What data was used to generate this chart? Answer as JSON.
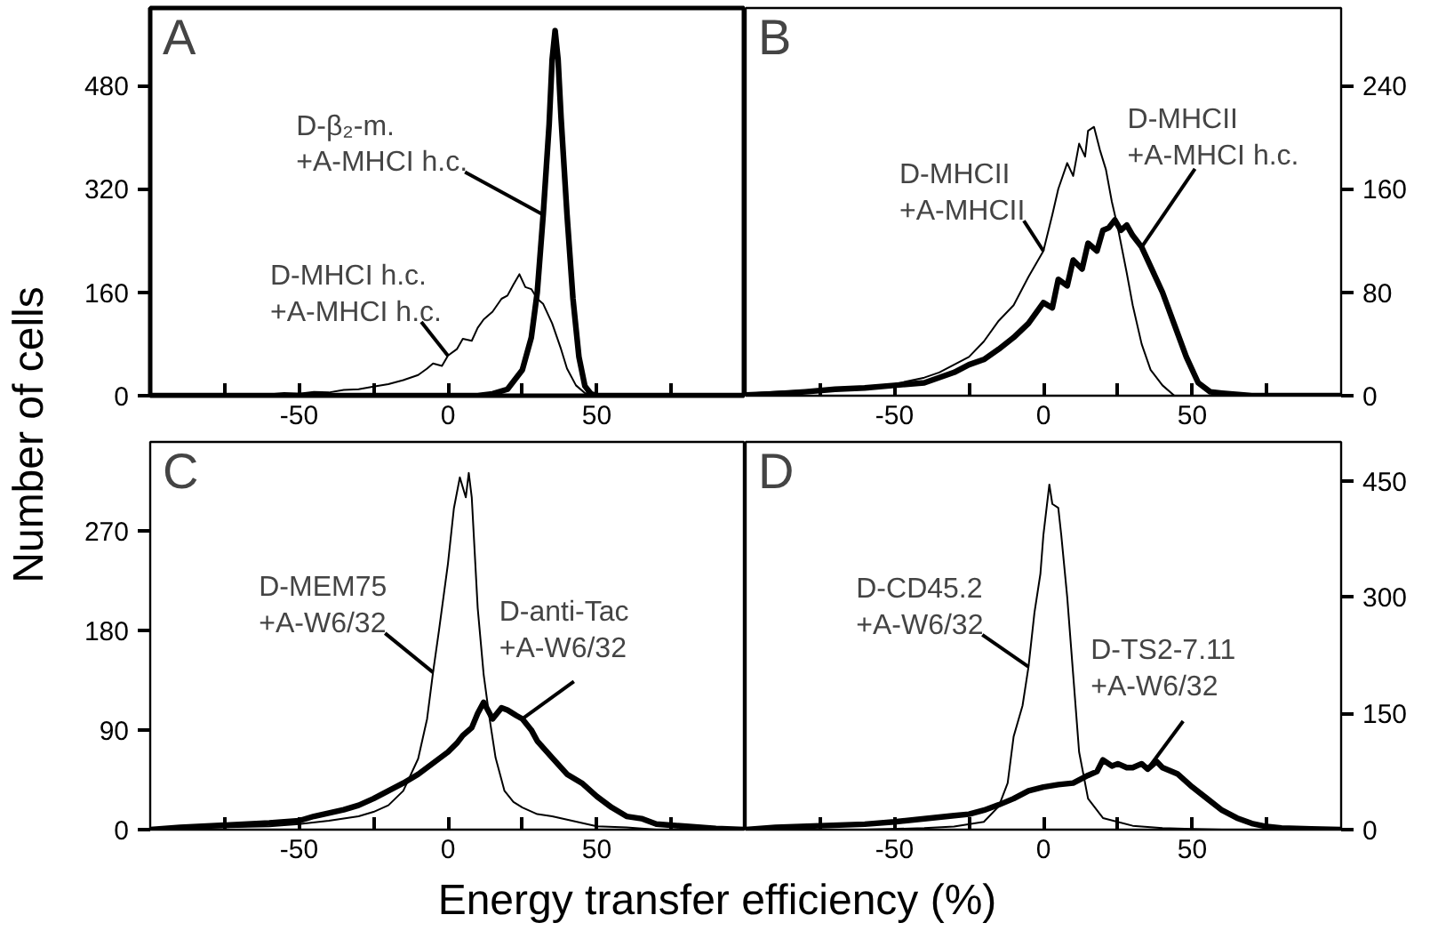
{
  "chart_data": [
    {
      "type": "line",
      "ylabel": "Number of cells",
      "xlim": [
        -100,
        100
      ],
      "ylim": [
        0,
        600
      ],
      "xticks": [
        {
          "value": -75,
          "label": null
        },
        -50,
        {
          "value": -25,
          "label": null
        },
        0,
        {
          "value": 25,
          "label": null
        },
        50,
        {
          "value": 75,
          "label": null
        }
      ],
      "yticks": [
        0,
        160,
        320,
        480
      ],
      "annotations": [
        "A",
        {
          "text": "D-β₂-m.\n+A-MHCI h.c.",
          "x": 32,
          "y": 280
        },
        {
          "text": "D-MHCI h.c.\n+A-MHCI h.c.",
          "x": 0,
          "y": 62
        }
      ],
      "series": [
        {
          "color": "#000000",
          "x": [
            -100,
            -70,
            -60,
            -55,
            -50,
            -45,
            -40,
            -35,
            -30,
            -25,
            -20,
            -15,
            -10,
            -7,
            -5,
            -2,
            0,
            3,
            5,
            8,
            10,
            12,
            15,
            18,
            20,
            22,
            24,
            26,
            28,
            30,
            32,
            35,
            38,
            40,
            43,
            46,
            50,
            60,
            100
          ],
          "values": [
            0,
            0,
            2,
            4,
            3,
            6,
            5,
            9,
            10,
            14,
            18,
            24,
            32,
            42,
            50,
            46,
            62,
            72,
            88,
            85,
            105,
            118,
            130,
            150,
            155,
            172,
            188,
            168,
            165,
            150,
            142,
            112,
            72,
            42,
            16,
            4,
            0,
            0,
            0
          ]
        },
        {
          "color": "#000000",
          "x": [
            -100,
            0,
            10,
            15,
            20,
            25,
            28,
            30,
            32,
            34,
            35,
            36,
            37,
            38,
            40,
            42,
            44,
            46,
            48,
            50,
            100
          ],
          "values": [
            0,
            0,
            0,
            3,
            10,
            40,
            90,
            160,
            280,
            420,
            520,
            565,
            520,
            430,
            280,
            150,
            60,
            15,
            3,
            0,
            0
          ]
        }
      ]
    },
    {
      "type": "line",
      "xlim": [
        -100,
        100
      ],
      "ylim": [
        0,
        300
      ],
      "xticks": [
        {
          "value": -75,
          "label": null
        },
        -50,
        {
          "value": -25,
          "label": null
        },
        0,
        {
          "value": 25,
          "label": null
        },
        50,
        {
          "value": 75,
          "label": null
        }
      ],
      "yticks": [
        0,
        80,
        160,
        240
      ],
      "annotations": [
        "B",
        {
          "text": "D-MHCII\n+A-MHCII",
          "x": 0,
          "y": 112
        },
        {
          "text": "D-MHCII\n+A-MHCI h.c.",
          "x": 33,
          "y": 115
        }
      ],
      "series": [
        {
          "color": "#000000",
          "x": [
            -100,
            -80,
            -70,
            -60,
            -50,
            -40,
            -35,
            -30,
            -25,
            -20,
            -15,
            -10,
            -5,
            0,
            3,
            5,
            8,
            10,
            12,
            14,
            15,
            17,
            19,
            21,
            23,
            25,
            28,
            30,
            33,
            36,
            40,
            44,
            50,
            100
          ],
          "values": [
            2,
            4,
            5,
            7,
            9,
            14,
            18,
            24,
            30,
            42,
            58,
            70,
            92,
            112,
            140,
            160,
            180,
            170,
            195,
            185,
            205,
            208,
            190,
            175,
            150,
            130,
            95,
            70,
            40,
            20,
            8,
            0,
            0,
            0
          ]
        },
        {
          "color": "#000000",
          "x": [
            -100,
            -80,
            -70,
            -60,
            -50,
            -40,
            -30,
            -25,
            -20,
            -15,
            -10,
            -5,
            0,
            3,
            5,
            8,
            10,
            13,
            15,
            18,
            20,
            22,
            24,
            26,
            28,
            30,
            33,
            36,
            40,
            44,
            48,
            52,
            56,
            60,
            70,
            100
          ],
          "values": [
            0,
            3,
            5,
            6,
            8,
            10,
            18,
            24,
            28,
            36,
            45,
            56,
            72,
            68,
            90,
            85,
            105,
            98,
            118,
            112,
            128,
            130,
            136,
            128,
            132,
            124,
            115,
            100,
            80,
            55,
            30,
            10,
            3,
            2,
            0,
            0
          ]
        }
      ]
    },
    {
      "type": "line",
      "xlabel": "Energy transfer efficiency (%)",
      "xlim": [
        -100,
        100
      ],
      "ylim": [
        0,
        350
      ],
      "xticks": [
        {
          "value": -75,
          "label": null
        },
        -50,
        {
          "value": -25,
          "label": null
        },
        0,
        {
          "value": 25,
          "label": null
        },
        50,
        {
          "value": 75,
          "label": null
        }
      ],
      "yticks": [
        0,
        90,
        180,
        270
      ],
      "annotations": [
        "C",
        {
          "text": "D-MEM75\n+A-W6/32",
          "x": -5,
          "y": 142
        },
        {
          "text": "D-anti-Tac\n+A-W6/32",
          "x": 25,
          "y": 100
        }
      ],
      "series": [
        {
          "color": "#000000",
          "x": [
            -100,
            -80,
            -60,
            -50,
            -40,
            -30,
            -25,
            -20,
            -15,
            -10,
            -7,
            -5,
            -3,
            0,
            2,
            4,
            6,
            7,
            8,
            9,
            10,
            12,
            14,
            16,
            19,
            22,
            25,
            30,
            35,
            40,
            45,
            50,
            60,
            70,
            100
          ],
          "values": [
            0,
            2,
            3,
            5,
            8,
            12,
            16,
            22,
            35,
            64,
            100,
            142,
            180,
            240,
            290,
            318,
            300,
            322,
            300,
            250,
            200,
            140,
            100,
            65,
            35,
            25,
            20,
            14,
            12,
            9,
            6,
            3,
            2,
            0,
            0
          ]
        },
        {
          "color": "#000000",
          "x": [
            -100,
            -90,
            -75,
            -60,
            -50,
            -45,
            -40,
            -35,
            -30,
            -25,
            -20,
            -15,
            -10,
            -5,
            0,
            3,
            5,
            8,
            10,
            12,
            15,
            18,
            20,
            23,
            25,
            28,
            30,
            35,
            40,
            45,
            50,
            55,
            60,
            65,
            70,
            80,
            90,
            100
          ],
          "values": [
            0,
            2,
            4,
            6,
            8,
            12,
            15,
            18,
            22,
            28,
            35,
            42,
            50,
            60,
            70,
            78,
            85,
            92,
            105,
            115,
            100,
            110,
            108,
            103,
            100,
            90,
            80,
            65,
            50,
            42,
            30,
            20,
            12,
            10,
            5,
            3,
            1,
            0
          ]
        }
      ]
    },
    {
      "type": "line",
      "xlim": [
        -100,
        100
      ],
      "ylim": [
        0,
        500
      ],
      "xticks": [
        {
          "value": -75,
          "label": null
        },
        -50,
        {
          "value": -25,
          "label": null
        },
        0,
        {
          "value": 25,
          "label": null
        },
        50,
        {
          "value": 75,
          "label": null
        }
      ],
      "yticks": [
        0,
        150,
        300,
        450
      ],
      "annotations": [
        "D",
        {
          "text": "D-CD45.2\n+A-W6/32",
          "x": -5,
          "y": 210
        },
        {
          "text": "D-TS2-7.11\n+A-W6/32",
          "x": 35,
          "y": 78
        }
      ],
      "series": [
        {
          "color": "#000000",
          "x": [
            -100,
            -60,
            -40,
            -30,
            -20,
            -15,
            -12,
            -10,
            -7,
            -5,
            -3,
            -1,
            0,
            2,
            3,
            5,
            6,
            8,
            10,
            12,
            15,
            20,
            30,
            40,
            50,
            60,
            100
          ],
          "values": [
            0,
            0,
            2,
            4,
            10,
            30,
            60,
            120,
            160,
            210,
            280,
            330,
            380,
            445,
            420,
            415,
            380,
            300,
            200,
            100,
            40,
            15,
            5,
            2,
            1,
            0,
            0
          ]
        },
        {
          "color": "#000000",
          "x": [
            -100,
            -90,
            -75,
            -60,
            -50,
            -40,
            -30,
            -25,
            -20,
            -15,
            -10,
            -5,
            0,
            5,
            10,
            15,
            18,
            20,
            23,
            25,
            28,
            30,
            33,
            35,
            38,
            40,
            45,
            50,
            55,
            60,
            65,
            70,
            75,
            80,
            90,
            100
          ],
          "values": [
            0,
            3,
            5,
            7,
            10,
            14,
            18,
            20,
            25,
            32,
            40,
            50,
            55,
            58,
            60,
            70,
            75,
            90,
            82,
            85,
            80,
            80,
            85,
            78,
            88,
            80,
            72,
            55,
            40,
            25,
            15,
            8,
            4,
            2,
            1,
            0
          ]
        }
      ]
    }
  ]
}
